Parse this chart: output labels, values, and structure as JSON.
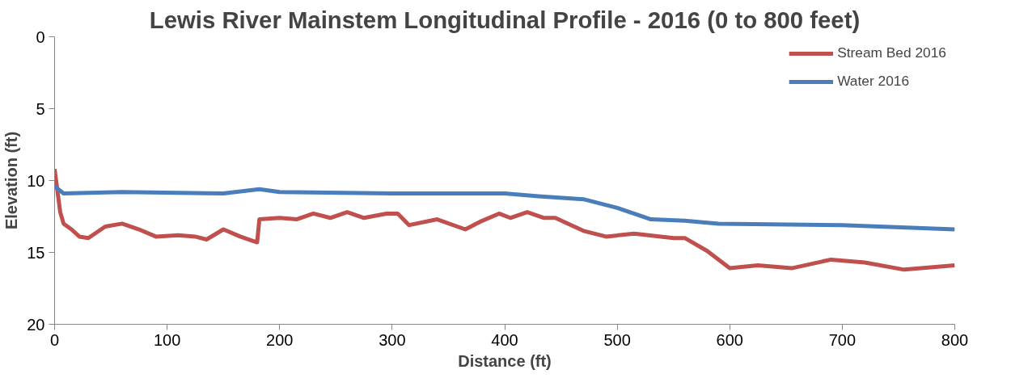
{
  "chart_data": {
    "type": "line",
    "title": "Lewis River Mainstem Longitudinal Profile - 2016 (0 to 800 feet)",
    "xlabel": "Distance (ft)",
    "ylabel": "Elevation (ft)",
    "xlim": [
      0,
      800
    ],
    "xticks": [
      0,
      100,
      200,
      300,
      400,
      500,
      600,
      700,
      800
    ],
    "ylim": [
      20,
      0
    ],
    "yticks": [
      0,
      5,
      10,
      15,
      20
    ],
    "grid": false,
    "legend": "top right",
    "line_style": "solid",
    "marker": "none",
    "series": [
      {
        "name": "Stream Bed 2016",
        "color": "#c0504d",
        "x": [
          0,
          5,
          8,
          15,
          22,
          30,
          45,
          60,
          75,
          90,
          110,
          125,
          135,
          150,
          165,
          180,
          182,
          200,
          215,
          230,
          245,
          260,
          275,
          295,
          305,
          315,
          340,
          365,
          380,
          395,
          405,
          420,
          435,
          445,
          470,
          490,
          515,
          550,
          560,
          580,
          600,
          625,
          655,
          690,
          720,
          755,
          800
        ],
        "values": [
          9.2,
          12.2,
          13.0,
          13.4,
          13.9,
          14.0,
          13.2,
          13.0,
          13.4,
          13.9,
          13.8,
          13.9,
          14.1,
          13.4,
          13.9,
          14.3,
          12.7,
          12.6,
          12.7,
          12.3,
          12.6,
          12.2,
          12.6,
          12.3,
          12.3,
          13.1,
          12.7,
          13.4,
          12.8,
          12.3,
          12.6,
          12.2,
          12.6,
          12.6,
          13.5,
          13.9,
          13.7,
          14.0,
          14.0,
          14.9,
          16.1,
          15.9,
          16.1,
          15.5,
          15.7,
          16.2,
          15.9
        ]
      },
      {
        "name": "Water 2016",
        "color": "#4a7ebb",
        "x": [
          0,
          8,
          60,
          150,
          182,
          200,
          300,
          400,
          430,
          470,
          500,
          530,
          560,
          590,
          700,
          800
        ],
        "values": [
          10.4,
          10.9,
          10.8,
          10.9,
          10.6,
          10.8,
          10.9,
          10.9,
          11.1,
          11.3,
          11.9,
          12.7,
          12.8,
          13.0,
          13.1,
          13.4
        ]
      }
    ]
  }
}
